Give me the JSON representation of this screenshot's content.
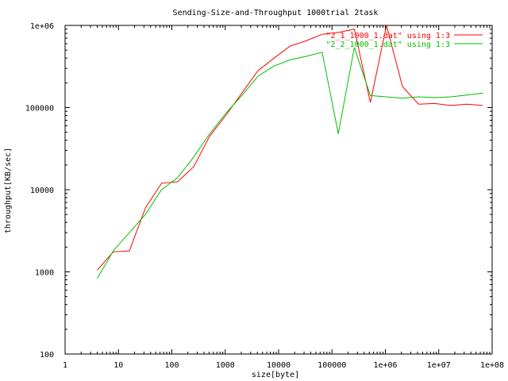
{
  "chart_data": {
    "type": "line",
    "title": "Sending-Size-and-Throughput 1000trial 2task",
    "xlabel": "size[byte]",
    "ylabel": "throughput[KB/sec]",
    "x_scale": "log",
    "y_scale": "log",
    "xlim": [
      1,
      100000000
    ],
    "ylim": [
      100,
      1000000
    ],
    "x_ticks": [
      1,
      10,
      100,
      1000,
      10000,
      100000,
      1000000,
      10000000,
      100000000
    ],
    "x_tick_labels": [
      "1",
      "10",
      "100",
      "1000",
      "10000",
      "100000",
      "1e+06",
      "1e+07",
      "1e+08"
    ],
    "y_ticks": [
      100,
      1000,
      10000,
      100000,
      1000000
    ],
    "y_tick_labels": [
      "100",
      "1000",
      "10000",
      "100000",
      "1e+06"
    ],
    "grid": false,
    "legend_position": "top-right",
    "series": [
      {
        "name": "\"2_1_1000_1.dat\" using 1:3",
        "color": "#ff0000",
        "x": [
          4,
          8,
          16,
          32,
          64,
          128,
          256,
          512,
          1024,
          2048,
          4096,
          8192,
          16384,
          32768,
          65536,
          131072,
          262144,
          524288,
          1048576,
          2097152,
          4194304,
          8388608,
          16777216,
          33554432,
          67108864
        ],
        "y": [
          1050,
          1750,
          1800,
          6000,
          12000,
          12500,
          19000,
          45000,
          80000,
          150000,
          280000,
          400000,
          560000,
          650000,
          780000,
          820000,
          900000,
          115000,
          1000000,
          180000,
          110000,
          112000,
          106000,
          110000,
          106000
        ]
      },
      {
        "name": "\"2_2_1000_1.dat\" using 1:3",
        "color": "#00c000",
        "x": [
          4,
          8,
          16,
          32,
          64,
          128,
          256,
          512,
          1024,
          2048,
          4096,
          8192,
          16384,
          32768,
          65536,
          131072,
          262144,
          524288,
          1048576,
          2097152,
          4194304,
          8388608,
          16777216,
          33554432,
          67108864
        ],
        "y": [
          830,
          1800,
          3000,
          5000,
          10000,
          14000,
          25000,
          48000,
          85000,
          140000,
          240000,
          320000,
          380000,
          420000,
          470000,
          48000,
          540000,
          140000,
          135000,
          130000,
          135000,
          132000,
          135000,
          142000,
          150000
        ]
      }
    ]
  }
}
